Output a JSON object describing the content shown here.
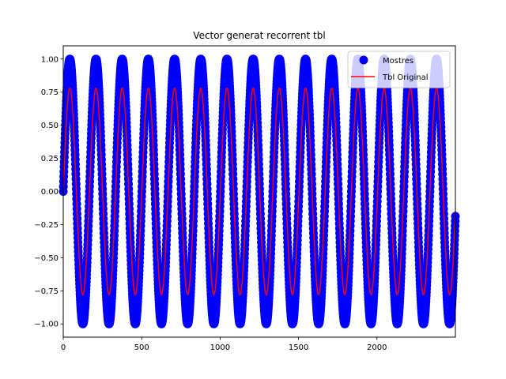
{
  "chart_data": {
    "type": "line",
    "title": "Vector generat recorrent tbl",
    "xlabel": "",
    "ylabel": "",
    "xlim": [
      0,
      2500
    ],
    "ylim": [
      -1.1,
      1.1
    ],
    "xticks": [
      0,
      500,
      1000,
      1500,
      2000
    ],
    "yticks": [
      -1.0,
      -0.75,
      -0.5,
      -0.25,
      0.0,
      0.25,
      0.5,
      0.75,
      1.0
    ],
    "xtick_labels": [
      "0",
      "500",
      "1000",
      "1500",
      "2000"
    ],
    "ytick_labels": [
      "−1.00",
      "−0.75",
      "−0.50",
      "−0.25",
      "0.00",
      "0.25",
      "0.50",
      "0.75",
      "1.00"
    ],
    "grid": false,
    "legend_position": "top-right",
    "series": [
      {
        "name": "Mostres",
        "kind": "scatter",
        "color": "#0000ff",
        "function": "sine",
        "amplitude": 1.0,
        "period": 167,
        "phase": 0.0,
        "x_start": 0,
        "x_end": 2500,
        "x_step": 1
      },
      {
        "name": "Tbl Original",
        "kind": "line",
        "color": "#ff0000",
        "function": "sine",
        "amplitude": 0.78,
        "period": 167,
        "phase": 0.0,
        "x_start": 0,
        "x_end": 2500,
        "x_step": 1
      }
    ]
  }
}
